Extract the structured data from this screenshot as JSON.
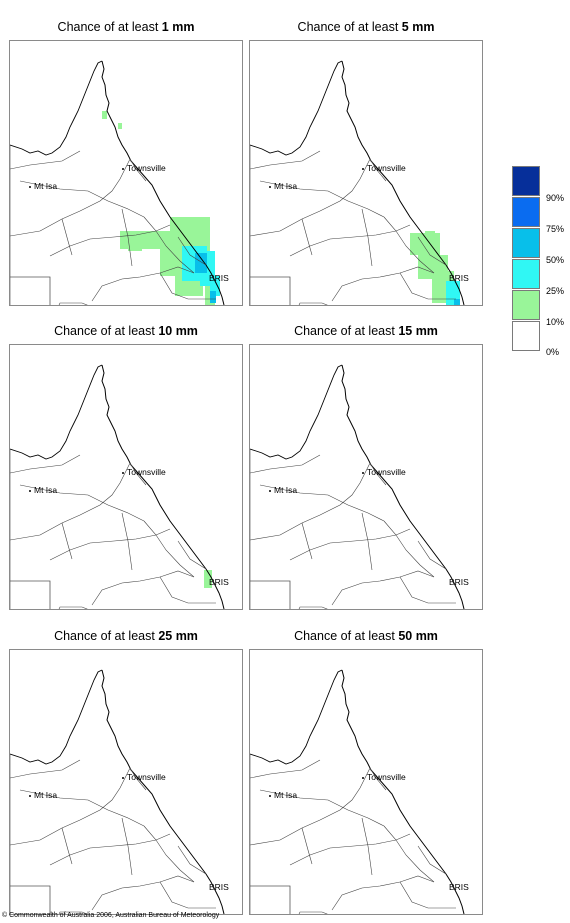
{
  "panels": [
    {
      "prefix": "Chance of at least ",
      "amount": "1 mm"
    },
    {
      "prefix": "Chance of at least ",
      "amount": "5 mm"
    },
    {
      "prefix": "Chance of at least ",
      "amount": "10 mm"
    },
    {
      "prefix": "Chance of at least ",
      "amount": "15 mm"
    },
    {
      "prefix": "Chance of at least ",
      "amount": "25 mm"
    },
    {
      "prefix": "Chance of at least ",
      "amount": "50 mm"
    }
  ],
  "places": {
    "townsville": "Townsville",
    "mt_isa": "Mt Isa",
    "bris": "BRIS"
  },
  "legend": {
    "ticks": [
      "90%",
      "75%",
      "50%",
      "25%",
      "10%",
      "0%"
    ],
    "colors": [
      "#062f9a",
      "#0a6cf0",
      "#08bfea",
      "#30f7f4",
      "#99f599",
      "#ffffff"
    ]
  },
  "footer": "© Commonwealth of Australia 2006, Australian Bureau of Meteorology"
}
